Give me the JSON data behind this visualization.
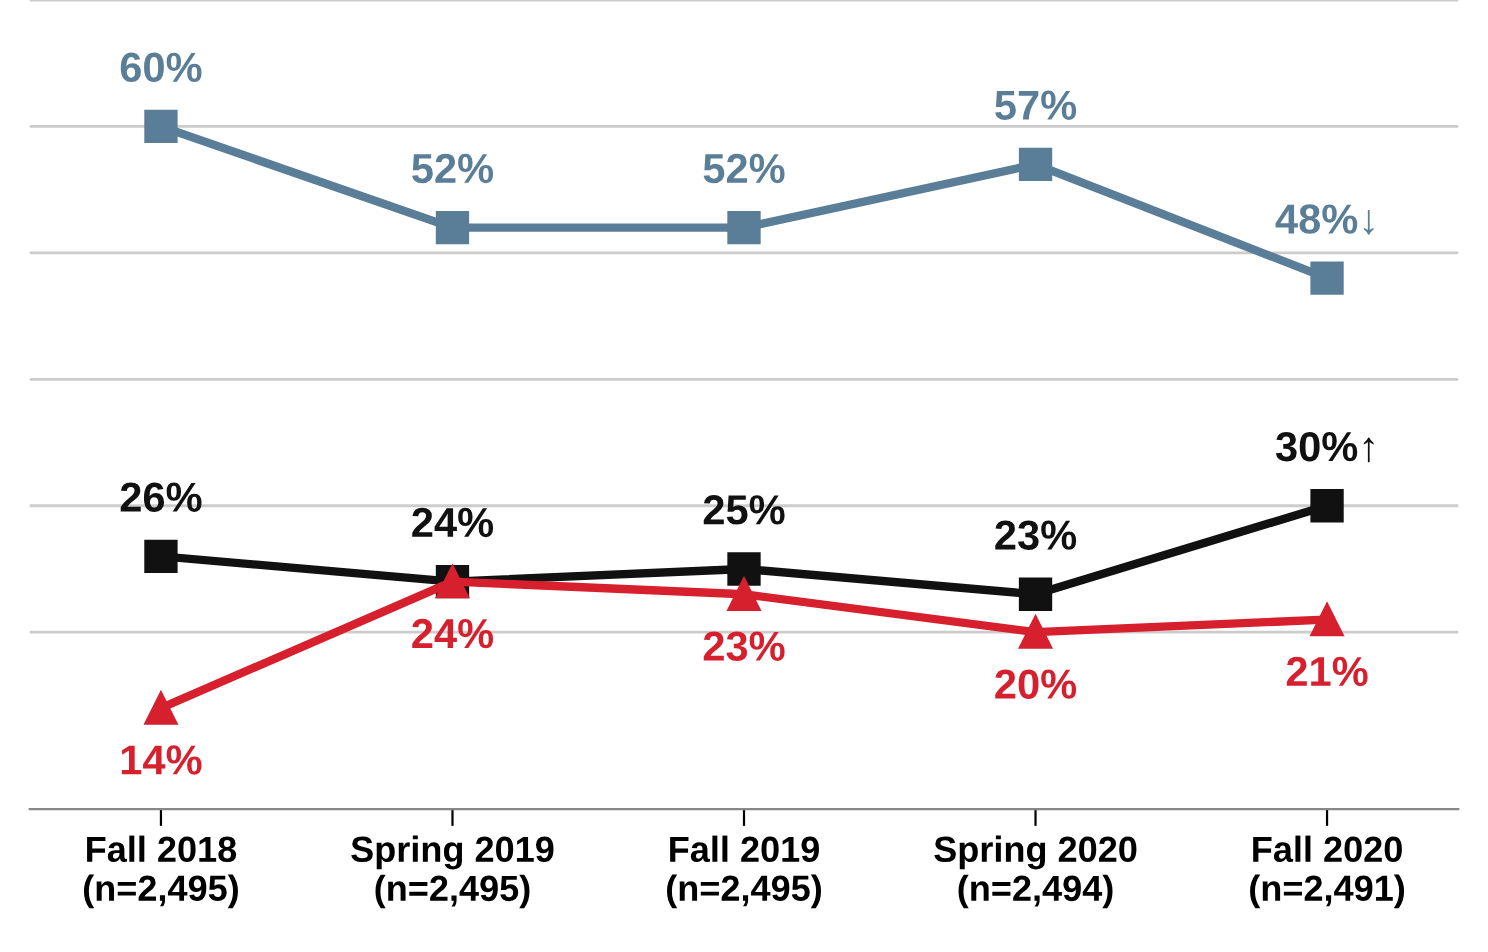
{
  "chart_data": {
    "type": "line",
    "categories": [
      "Fall 2018\n(n=2,495)",
      "Spring 2019\n(n=2,495)",
      "Fall 2019\n(n=2,495)",
      "Spring 2020\n(n=2,494)",
      "Fall 2020\n(n=2,491)"
    ],
    "series": [
      {
        "color": "#5a7d98",
        "marker": "square",
        "values": [
          60,
          52,
          52,
          57,
          48
        ],
        "value_labels": [
          "60%",
          "52%",
          "52%",
          "57%",
          "48%↓"
        ]
      },
      {
        "color": "#111111",
        "marker": "square",
        "values": [
          26,
          24,
          25,
          23,
          30
        ],
        "value_labels": [
          "26%",
          "24%",
          "25%",
          "23%",
          "30%↑"
        ]
      },
      {
        "color": "#d6202e",
        "marker": "triangle",
        "values": [
          14,
          24,
          23,
          20,
          21
        ],
        "value_labels": [
          "14%",
          "24%",
          "23%",
          "20%",
          "21%"
        ]
      }
    ],
    "ylim": [
      6,
      70
    ],
    "yticks": [
      {
        "value": 20,
        "label": null
      },
      {
        "value": 30,
        "label": null
      },
      {
        "value": 40,
        "label": null
      },
      {
        "value": 50,
        "label": null
      },
      {
        "value": 60,
        "label": null
      },
      {
        "value": 70,
        "label": null
      }
    ],
    "grid": "y",
    "tick_labels": "x",
    "line_style": "solid"
  }
}
